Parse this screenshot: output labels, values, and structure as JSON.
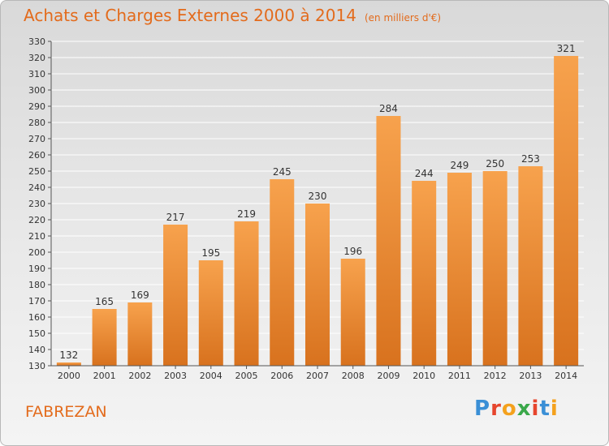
{
  "header": {
    "title": "Achats et Charges Externes 2000 à 2014",
    "subtitle": "(en milliers d'€)"
  },
  "footer": {
    "commune": "FABREZAN",
    "brand": "Proxiti"
  },
  "colors": {
    "title": "#e36b1c",
    "bar_light": "#f7a24d",
    "bar_dark": "#d8721e",
    "grid": "#ffffff",
    "axis": "#555555"
  },
  "chart_data": {
    "type": "bar",
    "title": "Achats et Charges Externes 2000 à 2014",
    "subtitle": "(en milliers d'€)",
    "xlabel": "",
    "ylabel": "",
    "ylim": [
      130,
      330
    ],
    "ytick_step": 10,
    "grid": true,
    "categories": [
      "2000",
      "2001",
      "2002",
      "2003",
      "2004",
      "2005",
      "2006",
      "2007",
      "2008",
      "2009",
      "2010",
      "2011",
      "2012",
      "2013",
      "2014"
    ],
    "values": [
      132,
      165,
      169,
      217,
      195,
      219,
      245,
      230,
      196,
      284,
      244,
      249,
      250,
      253,
      321
    ]
  }
}
